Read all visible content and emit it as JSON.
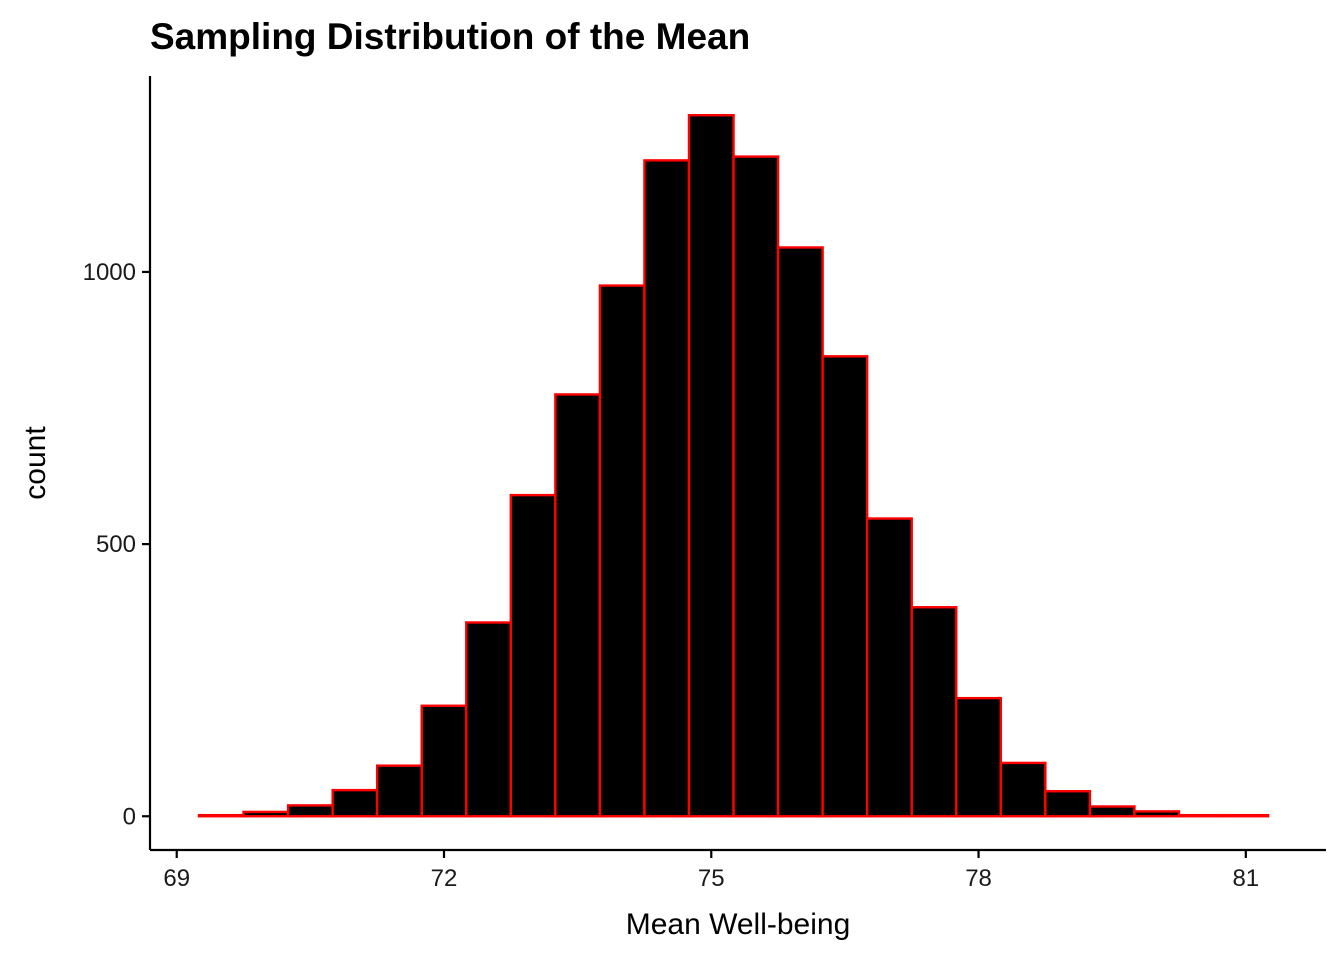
{
  "chart_data": {
    "type": "bar",
    "title": "Sampling Distribution of the Mean",
    "xlabel": "Mean Well-being",
    "ylabel": "count",
    "xlim": [
      68.7,
      81.9
    ],
    "ylim": [
      -62,
      1360
    ],
    "x_ticks": [
      69,
      72,
      75,
      78,
      81
    ],
    "y_ticks": [
      0,
      500,
      1000
    ],
    "bin_width": 0.5,
    "bins": [
      {
        "start": 69.25,
        "count": 2
      },
      {
        "start": 69.75,
        "count": 8
      },
      {
        "start": 70.25,
        "count": 20
      },
      {
        "start": 70.75,
        "count": 48
      },
      {
        "start": 71.25,
        "count": 93
      },
      {
        "start": 71.75,
        "count": 203
      },
      {
        "start": 72.25,
        "count": 356
      },
      {
        "start": 72.75,
        "count": 590
      },
      {
        "start": 73.25,
        "count": 775
      },
      {
        "start": 73.75,
        "count": 975
      },
      {
        "start": 74.25,
        "count": 1205
      },
      {
        "start": 74.75,
        "count": 1288
      },
      {
        "start": 75.25,
        "count": 1212
      },
      {
        "start": 75.75,
        "count": 1045
      },
      {
        "start": 76.25,
        "count": 845
      },
      {
        "start": 76.75,
        "count": 547
      },
      {
        "start": 77.25,
        "count": 384
      },
      {
        "start": 77.75,
        "count": 217
      },
      {
        "start": 78.25,
        "count": 98
      },
      {
        "start": 78.75,
        "count": 46
      },
      {
        "start": 79.25,
        "count": 18
      },
      {
        "start": 79.75,
        "count": 9
      },
      {
        "start": 80.25,
        "count": 2
      },
      {
        "start": 80.75,
        "count": 2
      }
    ],
    "colors": {
      "fill": "#000000",
      "outline": "#ff0000"
    },
    "grid": false,
    "legend": "none"
  }
}
